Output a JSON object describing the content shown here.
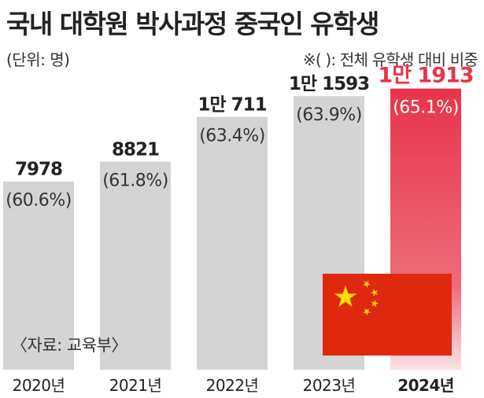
{
  "header": {
    "title": "국내 대학원 박사과정 중국인 유학생",
    "unit": "(단위: 명)",
    "note": "※( ): 전체 유학생 대비 비중"
  },
  "footer": {
    "source": "〈자료: 교육부〉"
  },
  "colors": {
    "bar": "#d4d4d4",
    "highlight": "#e8344a",
    "flag_red": "#de2910",
    "flag_star": "#ffde00",
    "text": "#222222"
  },
  "chart_data": {
    "type": "bar",
    "categories": [
      "2020년",
      "2021년",
      "2022년",
      "2023년",
      "2024년"
    ],
    "values": [
      7978,
      8821,
      10711,
      11593,
      11913
    ],
    "value_labels": [
      "7978",
      "8821",
      "1만 711",
      "1만 1593",
      "1만 1913"
    ],
    "share_percent": [
      60.6,
      61.8,
      63.4,
      63.9,
      65.1
    ],
    "share_labels": [
      "(60.6%)",
      "(61.8%)",
      "(63.4%)",
      "(63.9%)",
      "(65.1%)"
    ],
    "highlight_index": 4,
    "ylim": [
      0,
      14000
    ],
    "grid": false,
    "legend": "none",
    "title": "국내 대학원 박사과정 중국인 유학생",
    "xlabel": "",
    "ylabel": ""
  }
}
